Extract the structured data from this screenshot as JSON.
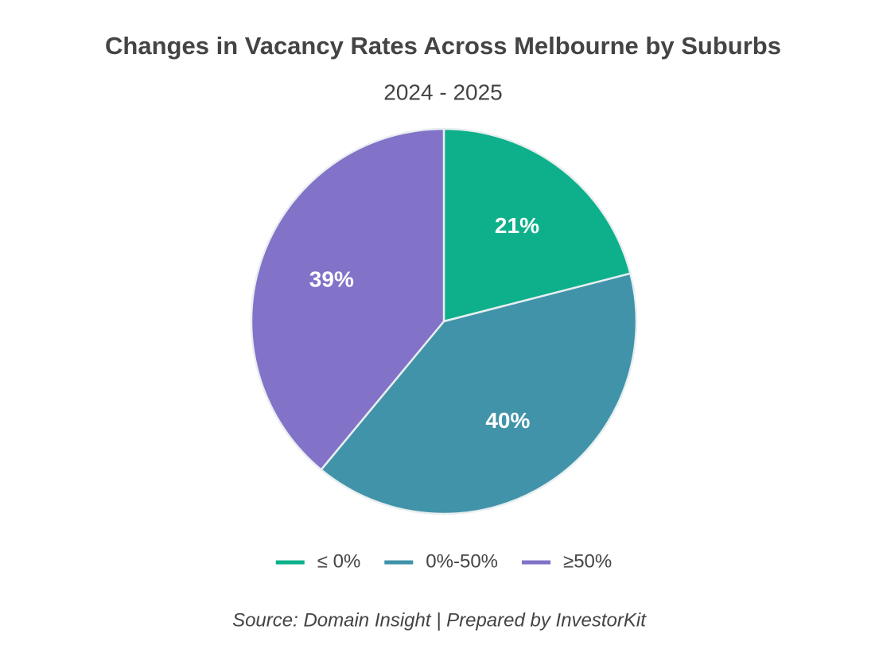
{
  "chart_data": {
    "type": "pie",
    "title": "Changes in Vacancy Rates Across Melbourne by Suburbs",
    "subtitle": "2024 - 2025",
    "categories": [
      "≤ 0%",
      "0%-50%",
      "≥50%"
    ],
    "values": [
      21,
      40,
      39
    ],
    "value_labels": [
      "21%",
      "40%",
      "39%"
    ],
    "colors": [
      "#0db08a",
      "#4193a9",
      "#8272c8"
    ],
    "legend": "bottom",
    "source": "Source: Domain Insight | Prepared by InvestorKit"
  }
}
